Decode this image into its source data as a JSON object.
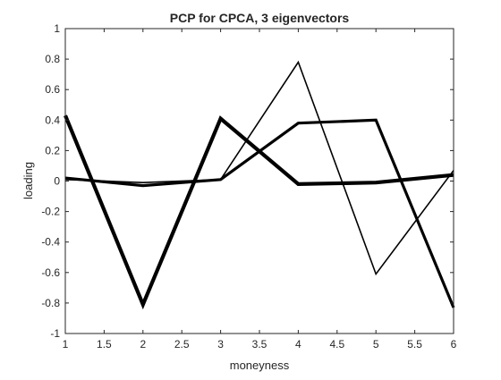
{
  "chart_data": {
    "type": "line",
    "title": "PCP for CPCA, 3 eigenvectors",
    "xlabel": "moneyness",
    "ylabel": "loading",
    "xlim": [
      1,
      6
    ],
    "ylim": [
      -1,
      1
    ],
    "x_ticks": [
      1,
      1.5,
      2,
      2.5,
      3,
      3.5,
      4,
      4.5,
      5,
      5.5,
      6
    ],
    "x_tick_labels": [
      "1",
      "1.5",
      "2",
      "2.5",
      "3",
      "3.5",
      "4",
      "4.5",
      "5",
      "5.5",
      "6"
    ],
    "y_ticks": [
      -1,
      -0.8,
      -0.6,
      -0.4,
      -0.2,
      0,
      0.2,
      0.4,
      0.6,
      0.8,
      1
    ],
    "y_tick_labels": [
      "-1",
      "-0.8",
      "-0.6",
      "-0.4",
      "-0.2",
      "0",
      "0.2",
      "0.4",
      "0.6",
      "0.8",
      "1"
    ],
    "grid": false,
    "legend": "none",
    "x": [
      1,
      2,
      3,
      4,
      5,
      6
    ],
    "series": [
      {
        "values": [
          0.02,
          -0.03,
          0.01,
          0.38,
          0.4,
          -0.83
        ],
        "color": "#000000",
        "width": 3.2
      },
      {
        "values": [
          0.43,
          -0.81,
          0.41,
          -0.02,
          -0.01,
          0.04
        ],
        "color": "#000000",
        "width": 4.2
      },
      {
        "values": [
          0.01,
          -0.01,
          0.01,
          0.78,
          -0.61,
          0.07
        ],
        "color": "#000000",
        "width": 1.6
      }
    ]
  }
}
